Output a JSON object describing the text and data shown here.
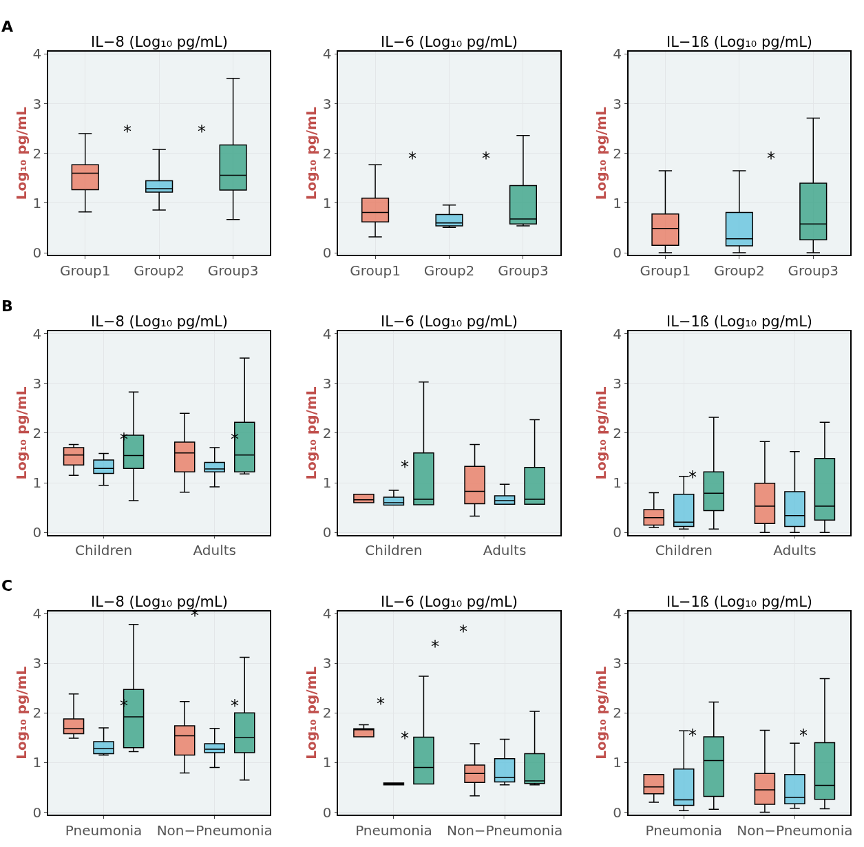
{
  "chart_data": [
    {
      "type": "box",
      "title": "IL−8 (Log₁₀ pg/mL)",
      "ylabel": "Log₁₀ pg/mL",
      "categories": [
        "Group1",
        "Group2",
        "Group3"
      ],
      "ylim": [
        0,
        4
      ],
      "yticks": [
        0,
        1,
        2,
        3,
        4
      ],
      "grid": true,
      "series": [
        {
          "colors": [
            "#e8735a",
            "#5bc0de",
            "#2e9e80"
          ],
          "boxes": [
            {
              "low": 0.82,
              "q1": 1.27,
              "median": 1.6,
              "q3": 1.77,
              "high": 2.4
            },
            {
              "low": 0.86,
              "q1": 1.22,
              "median": 1.29,
              "q3": 1.45,
              "high": 2.08
            },
            {
              "low": 0.67,
              "q1": 1.26,
              "median": 1.56,
              "q3": 2.17,
              "high": 3.51
            }
          ]
        }
      ],
      "annotations": [
        "A",
        "*",
        "*"
      ]
    },
    {
      "type": "box",
      "title": "IL−6 (Log₁₀ pg/mL)",
      "ylabel": "Log₁₀ pg/mL",
      "categories": [
        "Group1",
        "Group2",
        "Group3"
      ],
      "ylim": [
        0,
        4
      ],
      "yticks": [
        0,
        1,
        2,
        3,
        4
      ],
      "grid": true,
      "series": [
        {
          "colors": [
            "#e8735a",
            "#5bc0de",
            "#2e9e80"
          ],
          "boxes": [
            {
              "low": 0.32,
              "q1": 0.62,
              "median": 0.81,
              "q3": 1.1,
              "high": 1.77
            },
            {
              "low": 0.51,
              "q1": 0.54,
              "median": 0.6,
              "q3": 0.77,
              "high": 0.96
            },
            {
              "low": 0.54,
              "q1": 0.58,
              "median": 0.68,
              "q3": 1.35,
              "high": 2.36
            }
          ]
        }
      ],
      "annotations": [
        "*",
        "*"
      ]
    },
    {
      "type": "box",
      "title": "IL−1ß (Log₁₀ pg/mL)",
      "ylabel": "Log₁₀ pg/mL",
      "categories": [
        "Group1",
        "Group2",
        "Group3"
      ],
      "ylim": [
        0,
        4
      ],
      "yticks": [
        0,
        1,
        2,
        3,
        4
      ],
      "grid": true,
      "series": [
        {
          "colors": [
            "#e8735a",
            "#5bc0de",
            "#2e9e80"
          ],
          "boxes": [
            {
              "low": 0,
              "q1": 0.15,
              "median": 0.49,
              "q3": 0.78,
              "high": 1.65
            },
            {
              "low": 0,
              "q1": 0.14,
              "median": 0.28,
              "q3": 0.81,
              "high": 1.65
            },
            {
              "low": 0,
              "q1": 0.26,
              "median": 0.58,
              "q3": 1.4,
              "high": 2.71
            }
          ]
        }
      ],
      "annotations": [
        "*"
      ]
    },
    {
      "type": "box",
      "title": "IL−8 (Log₁₀ pg/mL)",
      "ylabel": "Log₁₀ pg/mL",
      "categories": [
        "Children",
        "Adults"
      ],
      "ylim": [
        0,
        4
      ],
      "yticks": [
        0,
        1,
        2,
        3,
        4
      ],
      "grid": true,
      "series": [
        {
          "color": "#e8735a",
          "boxes": [
            {
              "low": 1.15,
              "q1": 1.36,
              "median": 1.56,
              "q3": 1.71,
              "high": 1.77
            },
            {
              "low": 0.81,
              "q1": 1.22,
              "median": 1.6,
              "q3": 1.82,
              "high": 2.4
            }
          ]
        },
        {
          "color": "#5bc0de",
          "boxes": [
            {
              "low": 0.95,
              "q1": 1.19,
              "median": 1.29,
              "q3": 1.46,
              "high": 1.59
            },
            {
              "low": 0.92,
              "q1": 1.22,
              "median": 1.28,
              "q3": 1.41,
              "high": 1.71
            }
          ]
        },
        {
          "color": "#2e9e80",
          "boxes": [
            {
              "low": 0.64,
              "q1": 1.29,
              "median": 1.55,
              "q3": 1.96,
              "high": 2.83
            },
            {
              "low": 1.18,
              "q1": 1.22,
              "median": 1.56,
              "q3": 2.22,
              "high": 3.51
            }
          ]
        }
      ],
      "annotations": [
        "B",
        "*",
        "*"
      ]
    },
    {
      "type": "box",
      "title": "IL−6 (Log₁₀ pg/mL)",
      "ylabel": "Log₁₀ pg/mL",
      "categories": [
        "Children",
        "Adults"
      ],
      "ylim": [
        0,
        4
      ],
      "yticks": [
        0,
        1,
        2,
        3,
        4
      ],
      "grid": true,
      "series": [
        {
          "color": "#e8735a",
          "boxes": [
            {
              "low": 0.6,
              "q1": 0.6,
              "median": 0.66,
              "q3": 0.77,
              "high": 0.77
            },
            {
              "low": 0.33,
              "q1": 0.58,
              "median": 0.83,
              "q3": 1.33,
              "high": 1.77
            }
          ]
        },
        {
          "color": "#5bc0de",
          "boxes": [
            {
              "low": 0.55,
              "q1": 0.55,
              "median": 0.6,
              "q3": 0.71,
              "high": 0.85
            },
            {
              "low": 0.57,
              "q1": 0.57,
              "median": 0.64,
              "q3": 0.74,
              "high": 0.97
            }
          ]
        },
        {
          "color": "#2e9e80",
          "boxes": [
            {
              "low": 0.56,
              "q1": 0.56,
              "median": 0.67,
              "q3": 1.6,
              "high": 3.03
            },
            {
              "low": 0.57,
              "q1": 0.57,
              "median": 0.67,
              "q3": 1.31,
              "high": 2.27
            }
          ]
        }
      ],
      "annotations": [
        "*"
      ]
    },
    {
      "type": "box",
      "title": "IL−1ß (Log₁₀ pg/mL)",
      "ylabel": "Log₁₀ pg/mL",
      "categories": [
        "Children",
        "Adults"
      ],
      "ylim": [
        0,
        4
      ],
      "yticks": [
        0,
        1,
        2,
        3,
        4
      ],
      "grid": true,
      "series": [
        {
          "color": "#e8735a",
          "boxes": [
            {
              "low": 0.1,
              "q1": 0.15,
              "median": 0.3,
              "q3": 0.46,
              "high": 0.8
            },
            {
              "low": 0,
              "q1": 0.18,
              "median": 0.53,
              "q3": 0.99,
              "high": 1.83
            }
          ]
        },
        {
          "color": "#5bc0de",
          "boxes": [
            {
              "low": 0.07,
              "q1": 0.12,
              "median": 0.21,
              "q3": 0.77,
              "high": 1.13
            },
            {
              "low": 0,
              "q1": 0.12,
              "median": 0.34,
              "q3": 0.82,
              "high": 1.63
            }
          ]
        },
        {
          "color": "#2e9e80",
          "boxes": [
            {
              "low": 0.07,
              "q1": 0.44,
              "median": 0.79,
              "q3": 1.22,
              "high": 2.32
            },
            {
              "low": 0,
              "q1": 0.25,
              "median": 0.53,
              "q3": 1.49,
              "high": 2.22
            }
          ]
        }
      ],
      "annotations": [
        "*"
      ]
    },
    {
      "type": "box",
      "title": "IL−8 (Log₁₀ pg/mL)",
      "ylabel": "Log₁₀ pg/mL",
      "categories": [
        "Pneumonia",
        "Non−Pneumonia"
      ],
      "ylim": [
        0,
        4
      ],
      "yticks": [
        0,
        1,
        2,
        3,
        4
      ],
      "grid": true,
      "series": [
        {
          "color": "#e8735a",
          "boxes": [
            {
              "low": 1.49,
              "q1": 1.58,
              "median": 1.68,
              "q3": 1.88,
              "high": 2.38
            },
            {
              "low": 0.79,
              "q1": 1.15,
              "median": 1.54,
              "q3": 1.74,
              "high": 2.23
            }
          ]
        },
        {
          "color": "#5bc0de",
          "boxes": [
            {
              "low": 1.15,
              "q1": 1.18,
              "median": 1.28,
              "q3": 1.42,
              "high": 1.7
            },
            {
              "low": 0.9,
              "q1": 1.2,
              "median": 1.27,
              "q3": 1.38,
              "high": 1.69
            }
          ]
        },
        {
          "color": "#2e9e80",
          "boxes": [
            {
              "low": 1.22,
              "q1": 1.3,
              "median": 1.92,
              "q3": 2.47,
              "high": 3.78
            },
            {
              "low": 0.65,
              "q1": 1.2,
              "median": 1.5,
              "q3": 2.0,
              "high": 3.12
            }
          ]
        }
      ],
      "annotations": [
        "C",
        "*",
        "*",
        "*"
      ]
    },
    {
      "type": "box",
      "title": "IL−6 (Log₁₀ pg/mL)",
      "ylabel": "Log₁₀ pg/mL",
      "categories": [
        "Pneumonia",
        "Non−Pneumonia"
      ],
      "ylim": [
        0,
        4
      ],
      "yticks": [
        0,
        1,
        2,
        3,
        4
      ],
      "grid": true,
      "series": [
        {
          "color": "#e8735a",
          "boxes": [
            {
              "low": 1.52,
              "q1": 1.52,
              "median": 1.66,
              "q3": 1.68,
              "high": 1.76
            },
            {
              "low": 0.33,
              "q1": 0.6,
              "median": 0.78,
              "q3": 0.95,
              "high": 1.38
            }
          ]
        },
        {
          "color": "#5bc0de",
          "boxes": [
            {
              "low": 0.55,
              "q1": 0.55,
              "median": 0.57,
              "q3": 0.59,
              "high": 0.59
            },
            {
              "low": 0.55,
              "q1": 0.61,
              "median": 0.7,
              "q3": 1.08,
              "high": 1.47
            }
          ]
        },
        {
          "color": "#2e9e80",
          "boxes": [
            {
              "low": 0.57,
              "q1": 0.57,
              "median": 0.9,
              "q3": 1.51,
              "high": 2.74
            },
            {
              "low": 0.55,
              "q1": 0.58,
              "median": 0.63,
              "q3": 1.18,
              "high": 2.03
            }
          ]
        }
      ],
      "annotations": [
        "*",
        "*",
        "*",
        "*"
      ]
    },
    {
      "type": "box",
      "title": "IL−1ß (Log₁₀ pg/mL)",
      "ylabel": "Log₁₀ pg/mL",
      "categories": [
        "Pneumonia",
        "Non−Pneumonia"
      ],
      "ylim": [
        0,
        4
      ],
      "yticks": [
        0,
        1,
        2,
        3,
        4
      ],
      "grid": true,
      "series": [
        {
          "color": "#e8735a",
          "boxes": [
            {
              "low": 0.2,
              "q1": 0.37,
              "median": 0.51,
              "q3": 0.76,
              "high": 0.76
            },
            {
              "low": 0,
              "q1": 0.16,
              "median": 0.45,
              "q3": 0.78,
              "high": 1.65
            }
          ]
        },
        {
          "color": "#5bc0de",
          "boxes": [
            {
              "low": 0.03,
              "q1": 0.14,
              "median": 0.25,
              "q3": 0.87,
              "high": 1.64
            },
            {
              "low": 0.08,
              "q1": 0.17,
              "median": 0.3,
              "q3": 0.76,
              "high": 1.39
            }
          ]
        },
        {
          "color": "#2e9e80",
          "boxes": [
            {
              "low": 0.06,
              "q1": 0.32,
              "median": 1.04,
              "q3": 1.52,
              "high": 2.22
            },
            {
              "low": 0.07,
              "q1": 0.26,
              "median": 0.54,
              "q3": 1.4,
              "high": 2.69
            }
          ]
        }
      ],
      "annotations": [
        "*",
        "*"
      ]
    }
  ]
}
